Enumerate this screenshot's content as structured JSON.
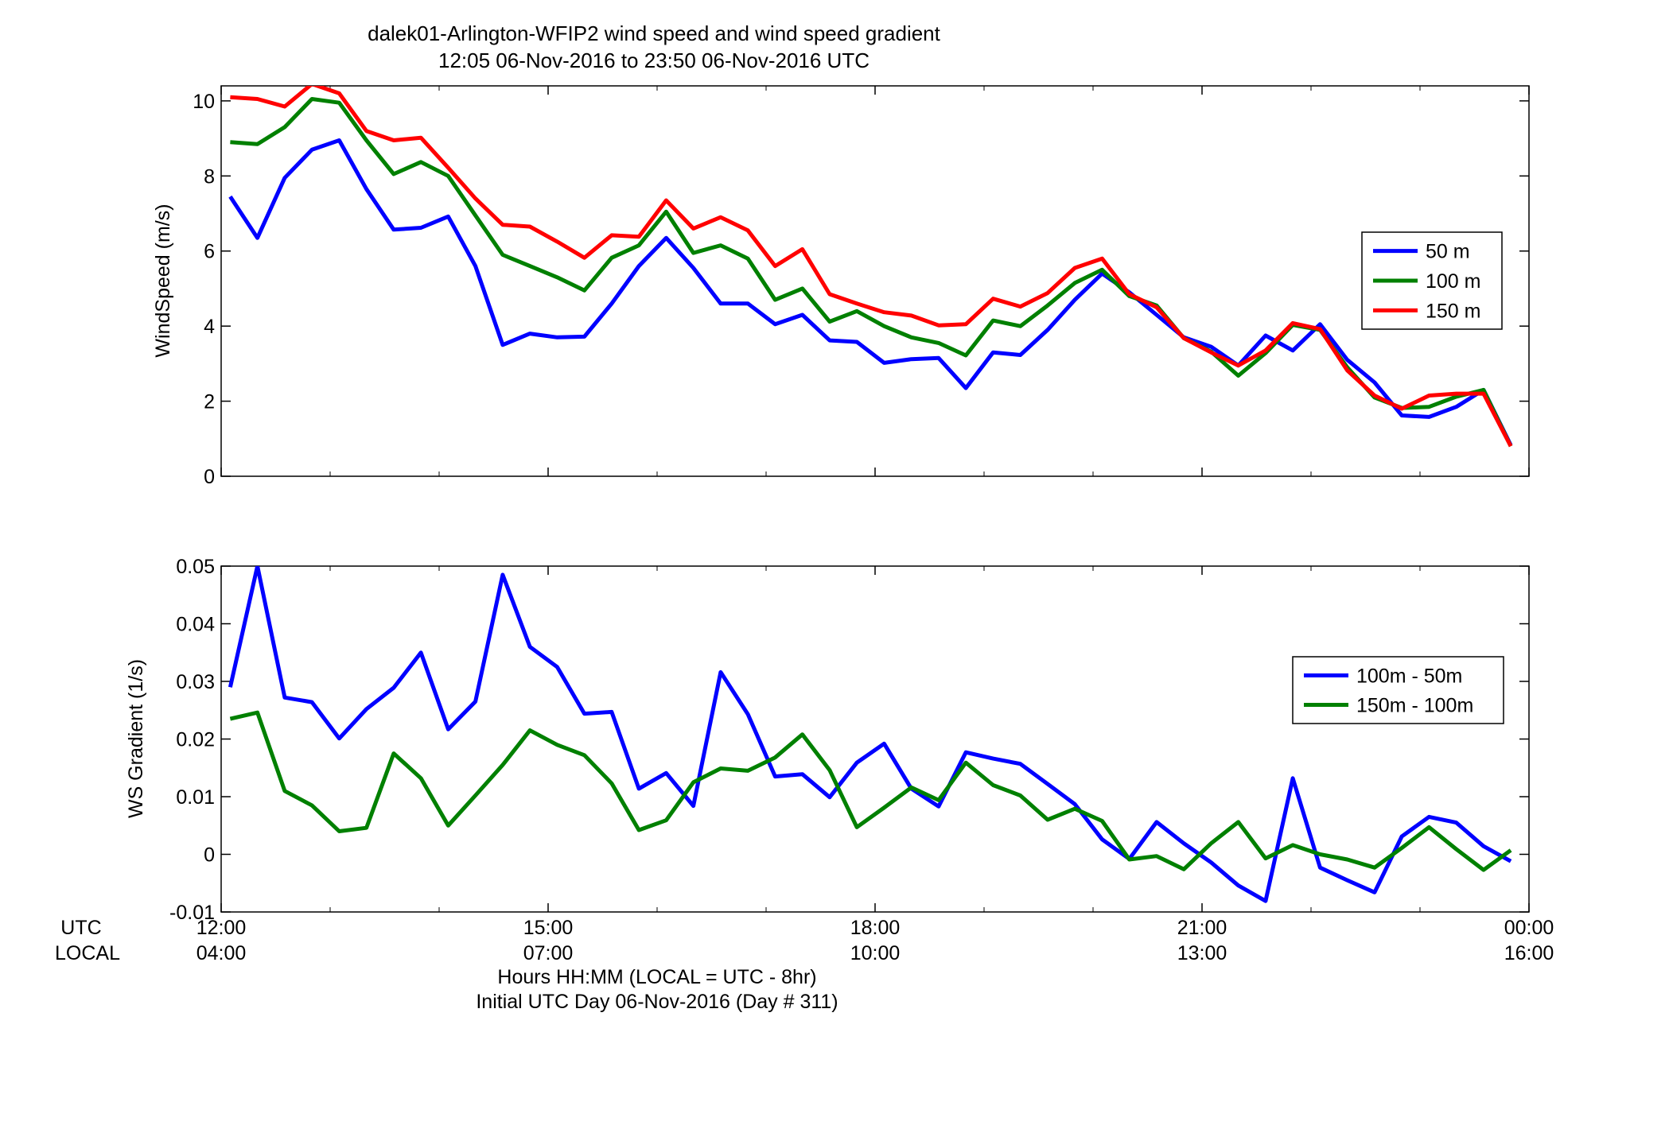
{
  "figure": {
    "title_line1": "dalek01-Arlington-WFIP2  wind speed and wind speed gradient",
    "title_line2": "12:05 06-Nov-2016 to 23:50 06-Nov-2016  UTC",
    "xlabel_line1": "Hours HH:MM  (LOCAL = UTC - 8hr)",
    "xlabel_line2": "Initial UTC Day 06-Nov-2016 (Day # 311)",
    "utc_row_label": "UTC",
    "local_row_label": "LOCAL",
    "x_ticks_utc": [
      "12:00",
      "15:00",
      "18:00",
      "21:00",
      "00:00"
    ],
    "x_ticks_local": [
      "04:00",
      "07:00",
      "10:00",
      "13:00",
      "16:00"
    ]
  },
  "chart_data": [
    {
      "type": "line",
      "ylabel": "WindSpeed (m/s)",
      "xlim": [
        12.0,
        24.0
      ],
      "ylim": [
        0,
        10.4
      ],
      "yticks": [
        0,
        2,
        4,
        6,
        8,
        10
      ],
      "ytick_labels": [
        "0",
        "2",
        "4",
        "6",
        "8",
        "10"
      ],
      "grid": false,
      "legend_position": "right",
      "x": [
        12.083,
        12.333,
        12.583,
        12.833,
        13.083,
        13.333,
        13.583,
        13.833,
        14.083,
        14.333,
        14.583,
        14.833,
        15.083,
        15.333,
        15.583,
        15.833,
        16.083,
        16.333,
        16.583,
        16.833,
        17.083,
        17.333,
        17.583,
        17.833,
        18.083,
        18.333,
        18.583,
        18.833,
        19.083,
        19.333,
        19.583,
        19.833,
        20.083,
        20.333,
        20.583,
        20.833,
        21.083,
        21.333,
        21.583,
        21.833,
        22.083,
        22.333,
        22.583,
        22.833,
        23.083,
        23.333,
        23.583,
        23.833
      ],
      "series": [
        {
          "name": "50 m",
          "color": "#0000ff",
          "values": [
            7.45,
            6.35,
            7.95,
            8.7,
            8.95,
            7.65,
            6.57,
            6.62,
            6.92,
            5.6,
            3.5,
            3.8,
            3.7,
            3.72,
            4.6,
            5.6,
            6.35,
            5.55,
            4.6,
            4.6,
            4.05,
            4.3,
            3.62,
            3.58,
            3.02,
            3.12,
            3.15,
            2.35,
            3.3,
            3.23,
            3.9,
            4.7,
            5.4,
            4.9,
            4.3,
            3.7,
            3.45,
            2.95,
            3.75,
            3.35,
            4.05,
            3.1,
            2.5,
            1.62,
            1.58,
            1.85,
            2.3,
            0.83
          ]
        },
        {
          "name": "100 m",
          "color": "#008000",
          "values": [
            8.9,
            8.85,
            9.3,
            10.05,
            9.95,
            8.95,
            8.05,
            8.37,
            8.0,
            6.95,
            5.9,
            5.6,
            5.3,
            4.95,
            5.82,
            6.15,
            7.05,
            5.95,
            6.15,
            5.8,
            4.7,
            5.0,
            4.12,
            4.4,
            4.0,
            3.7,
            3.55,
            3.22,
            4.15,
            4.0,
            4.55,
            5.15,
            5.5,
            4.8,
            4.55,
            3.68,
            3.32,
            2.68,
            3.28,
            4.03,
            3.9,
            2.9,
            2.1,
            1.82,
            1.85,
            2.12,
            2.3,
            0.8
          ]
        },
        {
          "name": "150 m",
          "color": "#ff0000",
          "values": [
            10.1,
            10.05,
            9.85,
            10.45,
            10.2,
            9.2,
            8.95,
            9.02,
            8.22,
            7.4,
            6.7,
            6.65,
            6.25,
            5.82,
            6.42,
            6.38,
            7.35,
            6.6,
            6.9,
            6.55,
            5.6,
            6.05,
            4.85,
            4.6,
            4.37,
            4.28,
            4.02,
            4.05,
            4.73,
            4.52,
            4.88,
            5.55,
            5.8,
            4.85,
            4.5,
            3.68,
            3.3,
            2.95,
            3.35,
            4.08,
            3.92,
            2.82,
            2.15,
            1.8,
            2.15,
            2.2,
            2.2,
            0.8
          ]
        }
      ]
    },
    {
      "type": "line",
      "ylabel": "WS Gradient (1/s)",
      "xlim": [
        12.0,
        24.0
      ],
      "ylim": [
        -0.01,
        0.05
      ],
      "yticks": [
        -0.01,
        0,
        0.01,
        0.02,
        0.03,
        0.04,
        0.05
      ],
      "ytick_labels": [
        "-0.01",
        "0",
        "0.01",
        "0.02",
        "0.03",
        "0.04",
        "0.05"
      ],
      "grid": false,
      "legend_position": "right",
      "x": [
        12.083,
        12.333,
        12.583,
        12.833,
        13.083,
        13.333,
        13.583,
        13.833,
        14.083,
        14.333,
        14.583,
        14.833,
        15.083,
        15.333,
        15.583,
        15.833,
        16.083,
        16.333,
        16.583,
        16.833,
        17.083,
        17.333,
        17.583,
        17.833,
        18.083,
        18.333,
        18.583,
        18.833,
        19.083,
        19.333,
        19.583,
        19.833,
        20.083,
        20.333,
        20.583,
        20.833,
        21.083,
        21.333,
        21.583,
        21.833,
        22.083,
        22.333,
        22.583,
        22.833,
        23.083,
        23.333,
        23.583,
        23.833
      ],
      "series": [
        {
          "name": "100m - 50m",
          "color": "#0000ff",
          "values": [
            0.029,
            0.05,
            0.0272,
            0.0264,
            0.0201,
            0.0252,
            0.0289,
            0.035,
            0.0217,
            0.0265,
            0.0485,
            0.036,
            0.0325,
            0.0244,
            0.0247,
            0.0114,
            0.0141,
            0.0084,
            0.0316,
            0.0243,
            0.0135,
            0.0139,
            0.0099,
            0.0159,
            0.0192,
            0.0114,
            0.0083,
            0.0177,
            0.0166,
            0.0157,
            0.0122,
            0.0087,
            0.0026,
            -0.0008,
            0.0056,
            0.0019,
            -0.0014,
            -0.0054,
            -0.0081,
            0.0132,
            -0.0023,
            -0.0045,
            -0.0066,
            0.0031,
            0.0065,
            0.0055,
            0.0014,
            -0.0012
          ]
        },
        {
          "name": "150m - 100m",
          "color": "#008000",
          "values": [
            0.0235,
            0.0246,
            0.011,
            0.0085,
            0.004,
            0.0046,
            0.0175,
            0.0132,
            0.005,
            0.0102,
            0.0155,
            0.0215,
            0.019,
            0.0172,
            0.0123,
            0.0042,
            0.0059,
            0.0125,
            0.0149,
            0.0145,
            0.0168,
            0.0208,
            0.0146,
            0.0047,
            0.0081,
            0.0116,
            0.0094,
            0.0159,
            0.012,
            0.0102,
            0.006,
            0.0079,
            0.0058,
            -0.0009,
            -0.0003,
            -0.0026,
            0.0019,
            0.0056,
            -0.0007,
            0.0016,
            0.0,
            -0.0009,
            -0.0023,
            0.0011,
            0.0047,
            0.0009,
            -0.0027,
            0.0007
          ]
        }
      ]
    }
  ]
}
